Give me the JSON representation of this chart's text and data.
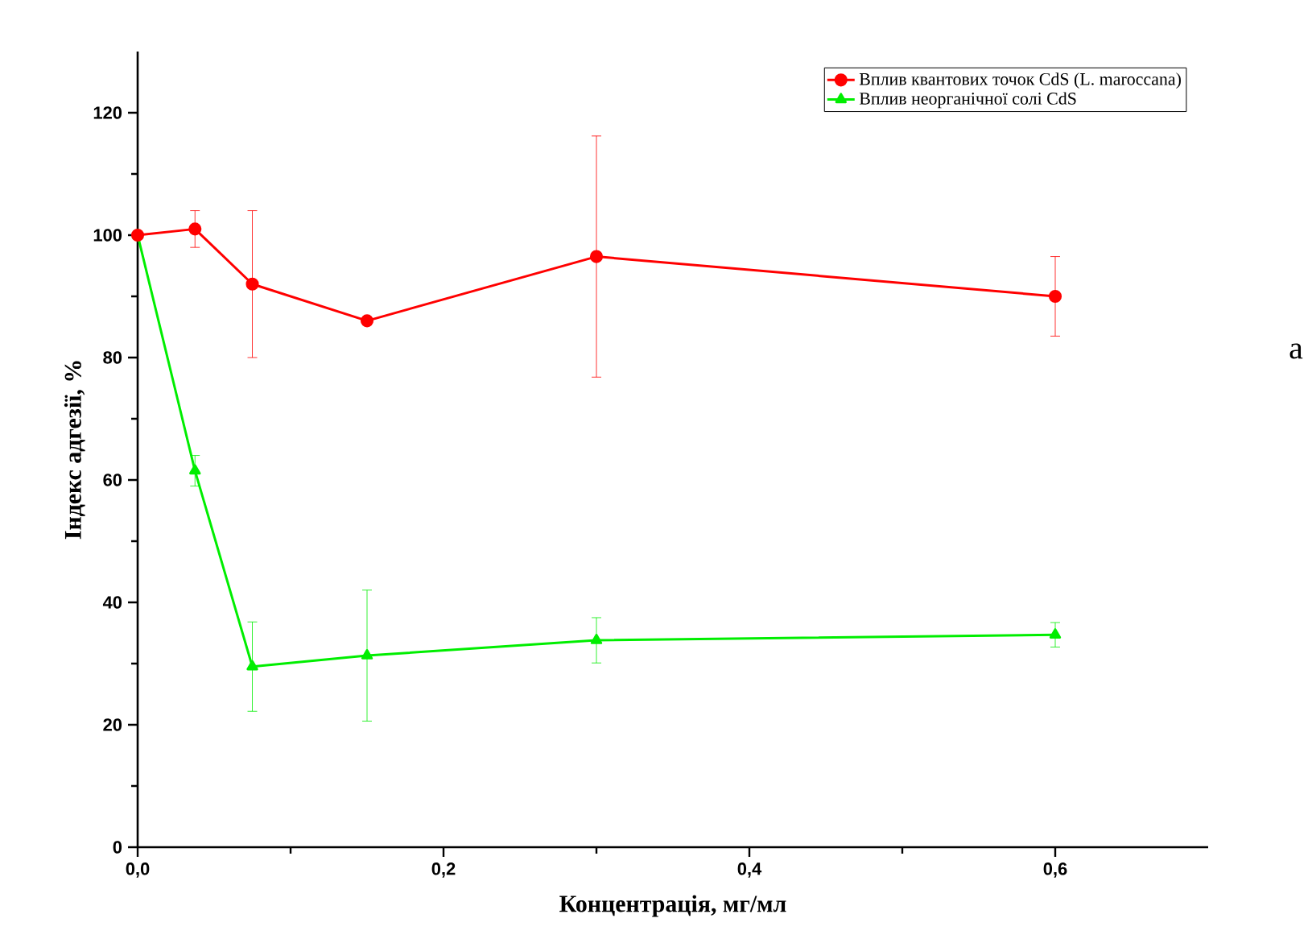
{
  "chart_data": {
    "type": "line",
    "xlabel": "Концентрація, мг/мл",
    "ylabel": "Індекс адгезії, %",
    "annotations": [
      "a"
    ],
    "x": [
      0,
      0.0375,
      0.075,
      0.15,
      0.3,
      0.6
    ],
    "series": [
      {
        "name": "Вплив квантових точок CdS (L. maroccana)",
        "color": "#ff0000",
        "marker": "circle",
        "values": [
          100,
          101,
          92,
          86,
          96.5,
          90
        ],
        "errors": [
          null,
          3,
          12,
          null,
          19.7,
          6.5
        ]
      },
      {
        "name": "Вплив неорганічної солі CdS",
        "color": "#00ee00",
        "marker": "triangle",
        "values": [
          100,
          61.5,
          29.5,
          31.3,
          33.8,
          34.7
        ],
        "errors": [
          null,
          2.5,
          7.3,
          10.7,
          3.7,
          2
        ]
      }
    ],
    "xlim": [
      0,
      0.7
    ],
    "ylim": [
      0,
      130
    ],
    "xticks": [
      {
        "value": 0,
        "label": "0,0"
      },
      {
        "value": 0.2,
        "label": "0,2"
      },
      {
        "value": 0.4,
        "label": "0,4"
      },
      {
        "value": 0.6,
        "label": "0,6"
      }
    ],
    "yticks": [
      0,
      20,
      40,
      60,
      80,
      100,
      120
    ],
    "legend": "top right",
    "grid": false,
    "line_style": "solid"
  }
}
